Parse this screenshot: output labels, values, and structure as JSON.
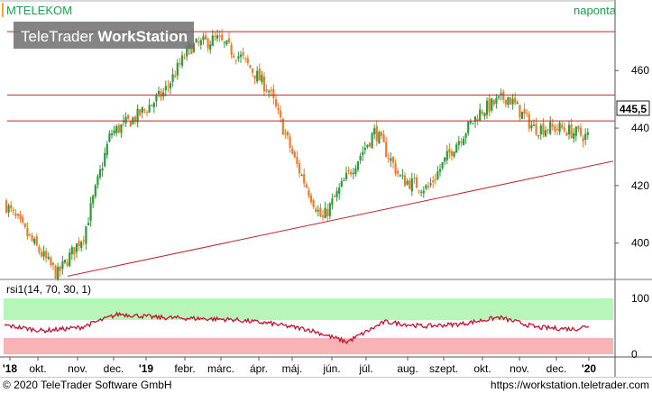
{
  "header": {
    "symbol": "MTELEKOM",
    "period": "naponta",
    "watermark_prefix": "TeleTrader",
    "watermark_brand": "WorkStation"
  },
  "price_axis": {
    "ticks": [
      400,
      420,
      440,
      460
    ],
    "tick_labels": [
      "400",
      "420",
      "440",
      "460"
    ],
    "last_price_label": "445,5"
  },
  "rsi_panel": {
    "label": "rsi1(14, 70, 30, 1)",
    "ticks": [
      0,
      100
    ],
    "tick_labels": [
      "0",
      "100"
    ]
  },
  "time_axis": {
    "labels": [
      "'18",
      "okt.",
      "nov.",
      "dec.",
      "'19",
      "febr.",
      "márc.",
      "ápr.",
      "máj.",
      "jún.",
      "júl.",
      "aug.",
      "szept.",
      "okt.",
      "nov.",
      "dec.",
      "'20"
    ]
  },
  "footer": {
    "copyright": "© 2020 TeleTrader Software GmbH",
    "url": "https://workstation.teletrader.com"
  },
  "colors": {
    "up_candle": "#2e9b3a",
    "down_candle": "#f07b28",
    "level_lines": "#c0262c",
    "trend_line": "#c0262c",
    "rsi_line": "#c8102e",
    "rsi_overbought_zone": "#b8f5b8",
    "rsi_oversold_zone": "#f8b4b4",
    "symbol_text": "#1aa34a",
    "accent_bar": "#f5a623"
  },
  "chart_data": {
    "type": "candlestick",
    "title": "MTELEKOM",
    "interval": "naponta",
    "last_price": 445.5,
    "y_range": [
      388,
      477
    ],
    "horizontal_levels": [
      473.5,
      451.5,
      442.5
    ],
    "trend_line": [
      {
        "x": "2018 nov.",
        "y": 388.5
      },
      {
        "x": "2020 jan.",
        "y": 428.5
      }
    ],
    "close_path": [
      {
        "x": "2018 szept.",
        "y": 414
      },
      {
        "x": "2018 okt.",
        "y": 401
      },
      {
        "x": "2018 nov.",
        "y": 389
      },
      {
        "x": "2018 nov. végén",
        "y": 403
      },
      {
        "x": "2018 dec.",
        "y": 438
      },
      {
        "x": "2018 dec. végén",
        "y": 444
      },
      {
        "x": "2019 jan.",
        "y": 452
      },
      {
        "x": "2019 febr.",
        "y": 468
      },
      {
        "x": "2019 márc.",
        "y": 471
      },
      {
        "x": "2019 ápr.",
        "y": 464
      },
      {
        "x": "2019 máj.",
        "y": 453
      },
      {
        "x": "2019 máj. végén",
        "y": 428
      },
      {
        "x": "2019 jún.",
        "y": 408
      },
      {
        "x": "2019 júl.",
        "y": 424
      },
      {
        "x": "2019 júl. végén",
        "y": 439
      },
      {
        "x": "2019 aug.",
        "y": 422
      },
      {
        "x": "2019 szept.",
        "y": 419
      },
      {
        "x": "2019 szept. végén",
        "y": 434
      },
      {
        "x": "2019 okt.",
        "y": 446
      },
      {
        "x": "2019 okt. végén",
        "y": 451
      },
      {
        "x": "2019 nov.",
        "y": 440
      },
      {
        "x": "2019 dec.",
        "y": 440
      },
      {
        "x": "2019 dec. végén",
        "y": 437
      },
      {
        "x": "2020 jan.",
        "y": 445.5
      }
    ],
    "rsi": {
      "name": "rsi1(14, 70, 30, 1)",
      "overbought": 70,
      "oversold": 30,
      "y_range": [
        0,
        100
      ],
      "path": [
        {
          "x": "2018 szept.",
          "y": 52
        },
        {
          "x": "2018 okt.",
          "y": 42
        },
        {
          "x": "2018 nov.",
          "y": 48
        },
        {
          "x": "2018 dec.",
          "y": 72
        },
        {
          "x": "2019 jan.",
          "y": 66
        },
        {
          "x": "2019 febr.",
          "y": 64
        },
        {
          "x": "2019 márc.",
          "y": 62
        },
        {
          "x": "2019 ápr.",
          "y": 55
        },
        {
          "x": "2019 máj.",
          "y": 44
        },
        {
          "x": "2019 jún.",
          "y": 22
        },
        {
          "x": "2019 júl.",
          "y": 58
        },
        {
          "x": "2019 aug.",
          "y": 50
        },
        {
          "x": "2019 szept.",
          "y": 54
        },
        {
          "x": "2019 okt.",
          "y": 66
        },
        {
          "x": "2019 nov.",
          "y": 48
        },
        {
          "x": "2019 dec.",
          "y": 45
        },
        {
          "x": "2020 jan.",
          "y": 62
        }
      ]
    }
  }
}
